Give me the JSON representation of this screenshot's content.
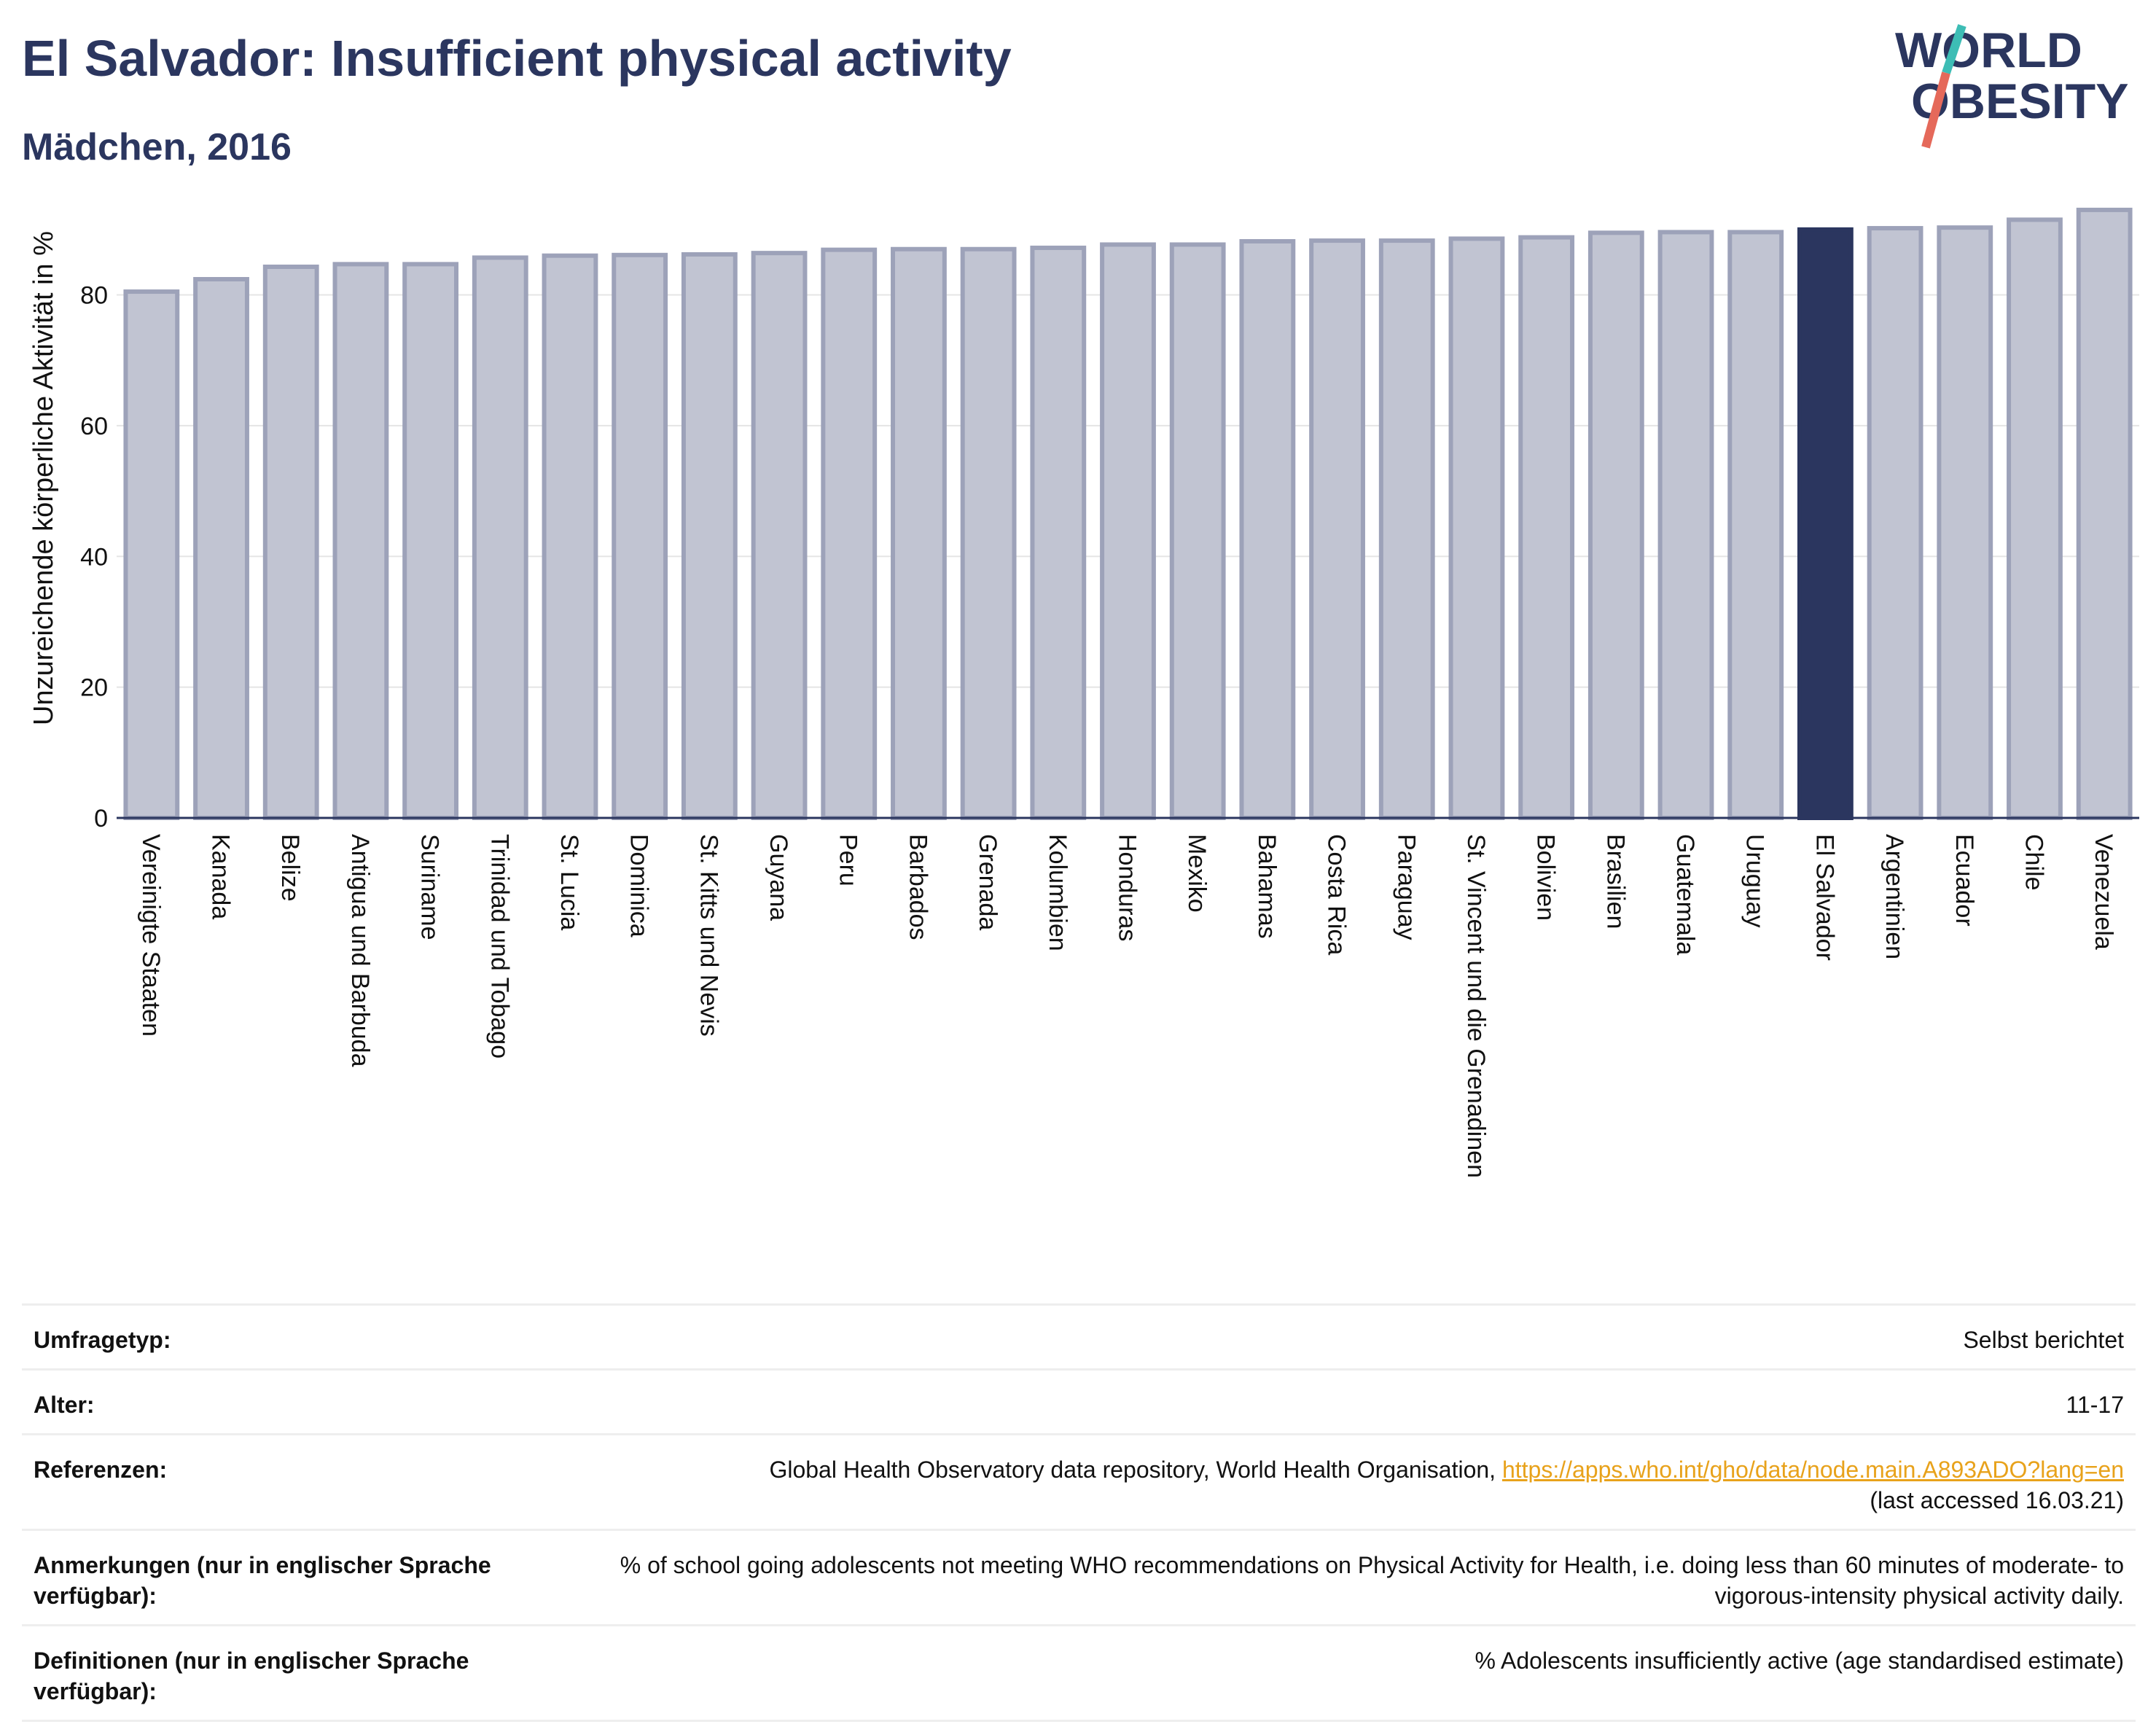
{
  "header": {
    "title": "El Salvador: Insufficient physical activity",
    "subtitle": "Mädchen, 2016"
  },
  "logo": {
    "line1": "WORLD",
    "line2": "OBESITY"
  },
  "colors": {
    "bar": "#c1c4d2",
    "bar_border": "#9da2b9",
    "highlight": "#2b365f",
    "grid": "#e5e5e5",
    "title": "#2b365f",
    "logo_slash_top": "#3dbdb5",
    "logo_slash_bottom": "#e5695a"
  },
  "chart_data": {
    "type": "bar",
    "ylabel": "Unzureichende körperliche Aktivität in %",
    "ylim": [
      0,
      95
    ],
    "yticks": [
      0,
      20,
      40,
      60,
      80
    ],
    "grid": true,
    "highlight_category": "El Salvador",
    "categories": [
      "Vereinigte Staaten",
      "Kanada",
      "Belize",
      "Antigua und Barbuda",
      "Suriname",
      "Trinidad und Tobago",
      "St. Lucia",
      "Dominica",
      "St. Kitts und Nevis",
      "Guyana",
      "Peru",
      "Barbados",
      "Grenada",
      "Kolumbien",
      "Honduras",
      "Mexiko",
      "Bahamas",
      "Costa Rica",
      "Paraguay",
      "St. Vincent und die Grenadinen",
      "Bolivien",
      "Brasilien",
      "Guatemala",
      "Uruguay",
      "El Salvador",
      "Argentinien",
      "Ecuador",
      "Chile",
      "Venezuela"
    ],
    "values": [
      80.5,
      82.4,
      84.3,
      84.7,
      84.7,
      85.7,
      86.0,
      86.1,
      86.2,
      86.4,
      86.9,
      87.0,
      87.0,
      87.2,
      87.7,
      87.7,
      88.2,
      88.3,
      88.3,
      88.6,
      88.8,
      89.5,
      89.6,
      89.6,
      90.0,
      90.2,
      90.3,
      91.5,
      93.0
    ]
  },
  "info": {
    "rows": [
      {
        "label": "Umfragetyp:",
        "value": "Selbst berichtet"
      },
      {
        "label": "Alter:",
        "value": "11-17"
      },
      {
        "label": "Referenzen:",
        "value": "Global Health Observatory data repository, World Health Organisation,",
        "link": "https://apps.who.int/gho/data/node.main.A893ADO?lang=en",
        "value_suffix": "(last accessed 16.03.21)"
      },
      {
        "label": "Anmerkungen (nur in englischer Sprache verfügbar):",
        "value": "% of school going adolescents not meeting WHO recommendations on Physical Activity for Health, i.e. doing less than 60 minutes of moderate- to vigorous-intensity physical activity daily."
      },
      {
        "label": "Definitionen (nur in englischer Sprache verfügbar):",
        "value": "% Adolescents insufficiently active (age standardised estimate)"
      }
    ]
  }
}
